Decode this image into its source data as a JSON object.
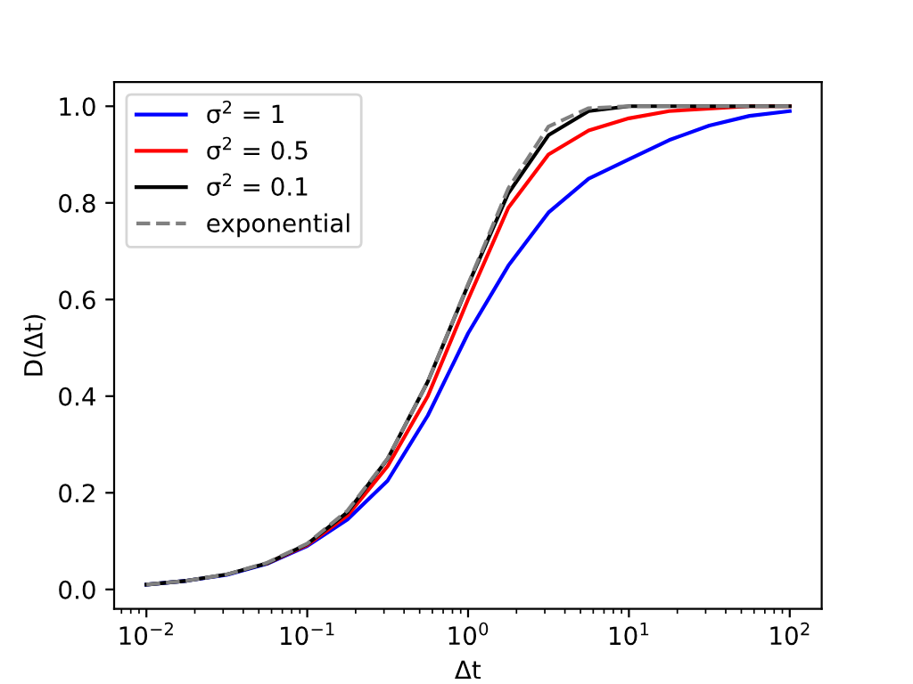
{
  "chart_data": {
    "type": "line",
    "xlabel": "Δt",
    "ylabel": "D(Δt)",
    "log": "x",
    "x": [
      0.01,
      0.0178,
      0.0316,
      0.0562,
      0.1,
      0.178,
      0.316,
      0.562,
      1,
      1.78,
      3.16,
      5.62,
      10,
      17.8,
      31.6,
      56.2,
      100
    ],
    "series": [
      {
        "name": "σ$^{2}$ = 1",
        "color": "#0000ff",
        "values": [
          0.01,
          0.018,
          0.03,
          0.053,
          0.09,
          0.145,
          0.225,
          0.36,
          0.53,
          0.67,
          0.78,
          0.85,
          0.89,
          0.93,
          0.96,
          0.98,
          0.99
        ]
      },
      {
        "name": "σ$^{2}$ = 0.5",
        "color": "#ff0000",
        "values": [
          null,
          null,
          null,
          0.054,
          0.092,
          0.153,
          0.255,
          0.4,
          0.6,
          0.79,
          0.9,
          0.95,
          0.975,
          0.99,
          0.995,
          1.0,
          1.0
        ]
      },
      {
        "name": "σ$^{2}$ = 0.1",
        "color": "#000000",
        "values": [
          0.01,
          0.018,
          0.031,
          0.054,
          0.094,
          0.16,
          0.27,
          0.43,
          0.63,
          0.82,
          0.94,
          0.99,
          1.0,
          1.0,
          1.0,
          1.0,
          1.0
        ]
      },
      {
        "name": "exponential",
        "color": "#808080",
        "line_style": "dashed",
        "values": [
          0.01,
          0.018,
          0.031,
          0.055,
          0.095,
          0.163,
          0.271,
          0.43,
          0.632,
          0.83,
          0.958,
          0.996,
          1.0,
          1.0,
          1.0,
          1.0,
          1.0
        ]
      }
    ],
    "xlim": [
      0.0063,
      158
    ],
    "ylim": [
      -0.04,
      1.05
    ],
    "xticks": [
      {
        "value": 0.01,
        "label": "10$^{−2}$"
      },
      {
        "value": 0.1,
        "label": "10$^{−1}$"
      },
      {
        "value": 1,
        "label": "10$^{0}$"
      },
      {
        "value": 10,
        "label": "10$^{1}$"
      },
      {
        "value": 100,
        "label": "10$^{2}$"
      }
    ],
    "yticks": [
      {
        "value": 0,
        "label": "0.0"
      },
      {
        "value": 0.2,
        "label": "0.2"
      },
      {
        "value": 0.4,
        "label": "0.4"
      },
      {
        "value": 0.6,
        "label": "0.6"
      },
      {
        "value": 0.8,
        "label": "0.8"
      },
      {
        "value": 1,
        "label": "1.0"
      }
    ],
    "legend": "top left",
    "grid": false
  }
}
